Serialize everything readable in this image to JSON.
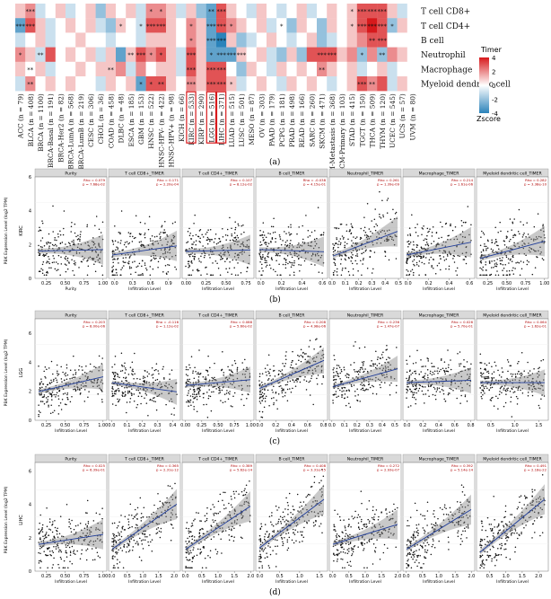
{
  "panel_labels": [
    "(a)",
    "(b)",
    "(c)",
    "(d)"
  ],
  "chart_data": [
    {
      "type": "heatmap",
      "title": "",
      "rows": [
        "T cell CD8+",
        "T cell CD4+",
        "B cell",
        "Neutrophil",
        "Macrophage",
        "Myeloid dendritic cell"
      ],
      "columns": [
        "ACC (n = 79)",
        "BLCA (n = 408)",
        "BRCA (n = 1100)",
        "BRCA-Basal (n = 191)",
        "BRCA-Her2 (n = 82)",
        "BRCA-LumA (n = 568)",
        "BRCA-LumB (n = 219)",
        "CESC (n = 306)",
        "CHOL (n = 36)",
        "COAD (n = 458)",
        "DLBC (n = 48)",
        "ESCA (n = 185)",
        "GBM (n = 153)",
        "HNSC (n = 522)",
        "HNSC-HPV- (n = 422)",
        "HNSC-HPV+ (n = 98)",
        "KICH (n = 66)",
        "KIRC (n = 533)",
        "KIRP (n = 290)",
        "LGG (n = 516)",
        "LIHC (n = 371)",
        "LUAD (n = 515)",
        "LUSC (n = 501)",
        "MESO (n = 87)",
        "OV (n = 303)",
        "PAAD (n = 179)",
        "PCPG (n = 181)",
        "PRAD (n = 498)",
        "READ (n = 166)",
        "SARC (n = 260)",
        "SKCM (n = 471)",
        "SKCM-Metastasis (n = 368)",
        "SKCM-Primary (n = 103)",
        "STAD (n = 415)",
        "TGCT (n = 150)",
        "THCA (n = 509)",
        "THYM (n = 120)",
        "UCEC (n = 545)",
        "UCS (n = 57)",
        "UVM (n = 80)"
      ],
      "highlighted_columns": [
        "KIRC (n = 533)",
        "LGG (n = 516)",
        "LIHC (n = 371)"
      ],
      "values": [
        [
          1,
          2,
          -1,
          0,
          1,
          -1,
          0,
          1,
          -2,
          1,
          0,
          1,
          -1,
          2,
          2,
          1,
          -1,
          1,
          -2,
          -3,
          3,
          1,
          0,
          -1,
          1,
          0,
          -1,
          0,
          1,
          -1,
          0,
          1,
          0,
          1,
          3,
          3,
          3,
          1,
          -1,
          0
        ],
        [
          -3,
          3,
          1,
          -1,
          0,
          1,
          0,
          1,
          -1,
          -2,
          1,
          0,
          -1,
          3,
          3,
          1,
          0,
          2,
          1,
          -3,
          3,
          2,
          1,
          0,
          1,
          -1,
          0,
          -2,
          1,
          0,
          -2,
          1,
          0,
          1,
          3,
          4,
          3,
          -2,
          1,
          0
        ],
        [
          -1,
          0,
          1,
          -1,
          0,
          0,
          1,
          0,
          0,
          -1,
          0,
          0,
          -1,
          1,
          1,
          1,
          0,
          2,
          1,
          -3,
          -4,
          1,
          -2,
          -1,
          0,
          1,
          0,
          -1,
          0,
          1,
          -2,
          -1,
          0,
          1,
          2,
          3,
          3,
          0,
          0,
          0
        ],
        [
          2,
          1,
          -1,
          3,
          0,
          1,
          0,
          1,
          -1,
          1,
          -3,
          1,
          3,
          2,
          3,
          1,
          -1,
          3,
          1,
          -3,
          -3,
          -3,
          1,
          0,
          1,
          -1,
          -2,
          1,
          -2,
          3,
          3,
          3,
          1,
          2,
          -2,
          2,
          -2,
          2,
          1,
          0
        ],
        [
          1,
          0,
          1,
          -1,
          0,
          0,
          1,
          0,
          1,
          1,
          2,
          -1,
          2,
          0,
          1,
          1,
          -1,
          3,
          1,
          3,
          3,
          0,
          -2,
          1,
          0,
          -1,
          1,
          0,
          1,
          0,
          2,
          1,
          0,
          1,
          -1,
          0,
          1,
          -1,
          0,
          0
        ],
        [
          -1,
          2,
          0,
          1,
          0,
          1,
          0,
          0,
          -1,
          1,
          0,
          1,
          -3,
          3,
          3,
          1,
          0,
          2,
          1,
          3,
          3,
          1,
          -1,
          0,
          1,
          0,
          -1,
          1,
          0,
          1,
          0,
          -1,
          0,
          1,
          3,
          2,
          3,
          -1,
          1,
          0
        ]
      ],
      "stars": [
        [
          "",
          "***",
          "",
          "",
          "",
          "",
          "",
          "",
          "",
          "",
          "",
          "",
          "",
          "*",
          "*",
          "",
          "",
          "",
          "",
          "**",
          "***",
          "",
          "",
          "",
          "",
          "",
          "",
          "",
          "",
          "",
          "",
          "",
          "",
          "*",
          "***",
          "***",
          "***",
          "",
          "",
          ""
        ],
        [
          "***",
          "***",
          "",
          "",
          "",
          "",
          "",
          "",
          "",
          "",
          "*",
          "",
          "*",
          "***",
          "***",
          "",
          "",
          "*",
          "",
          "***",
          "***",
          "*",
          "",
          "",
          "",
          "",
          "*",
          "",
          "",
          "",
          "",
          "",
          "",
          "*",
          "***",
          "***",
          "***",
          "*",
          "",
          ""
        ],
        [
          "",
          "",
          "",
          "",
          "",
          "",
          "",
          "",
          "",
          "",
          "",
          "",
          "",
          "",
          "",
          "",
          "",
          "*",
          "",
          "***",
          "***",
          "",
          "",
          "",
          "",
          "",
          "",
          "",
          "",
          "",
          "",
          "",
          "",
          "",
          "",
          "**",
          "***",
          "",
          "",
          ""
        ],
        [
          "*",
          "",
          "**",
          "",
          "",
          "",
          "",
          "",
          "",
          "",
          "",
          "**",
          "***",
          "*",
          "*",
          "",
          "",
          "***",
          "",
          "*",
          "***",
          "***",
          "***",
          "",
          "",
          "",
          "",
          "",
          "",
          "",
          "***",
          "***",
          "",
          "",
          "*",
          "",
          "**",
          "",
          "",
          ""
        ],
        [
          "",
          "**",
          "",
          "",
          "",
          "",
          "",
          "",
          "",
          "**",
          "",
          "",
          "",
          "",
          "",
          "",
          "",
          "***",
          "",
          "***",
          "***",
          "",
          "",
          "",
          "",
          "",
          "",
          "",
          "",
          "",
          "**",
          "",
          "",
          "",
          "",
          "",
          "",
          "",
          "",
          ""
        ],
        [
          "",
          "**",
          "",
          "",
          "",
          "",
          "",
          "",
          "",
          "",
          "",
          "",
          "*",
          "*",
          "**",
          "",
          "",
          "***",
          "",
          "***",
          "***",
          "*",
          "",
          "",
          "",
          "",
          "",
          "",
          "",
          "",
          "",
          "",
          "",
          "",
          "***",
          "**",
          "",
          "",
          "",
          ""
        ]
      ],
      "color_scale": {
        "min": -4,
        "max": 4,
        "ticks": [
          4,
          2,
          0,
          -2,
          -4
        ],
        "low": "#2b83ba",
        "mid": "#ffffff",
        "high": "#d7191c"
      },
      "legend_title_top": "Timer",
      "legend_title_bottom": "Zscore"
    },
    {
      "type": "scatter",
      "row_label": "KIRC",
      "ylabel": "PBK Expression Level (log2 TPM)",
      "xlabel": "Infiltration Level",
      "ylim": [
        0,
        6
      ],
      "facets": [
        {
          "title": "Purity",
          "xlabel": "Purity",
          "xticks": [
            "0.25",
            "0.50",
            "0.75",
            "1.00"
          ],
          "xlim": [
            0.1,
            1.05
          ],
          "slope": 0.1,
          "intercept": 1.6,
          "stat": [
            "Rho = 0.079",
            "p = 7.68e-02"
          ]
        },
        {
          "title": "T cell CD8+_TIMER",
          "xticks": [
            "0.0",
            "0.3",
            "0.6",
            "0.9"
          ],
          "xlim": [
            -0.1,
            1.1
          ],
          "slope": 0.5,
          "intercept": 1.4,
          "stat": [
            "Rho = 0.171",
            "p = 2.20e-04"
          ]
        },
        {
          "title": "T cell CD4+_TIMER",
          "xticks": [
            "0.00",
            "0.25",
            "0.50",
            "0.75"
          ],
          "xlim": [
            -0.05,
            0.85
          ],
          "slope": 0.1,
          "intercept": 1.6,
          "stat": [
            "Rho = 0.107",
            "p = 8.12e-02"
          ]
        },
        {
          "title": "B cell_TIMER",
          "xticks": [
            "0.0",
            "0.2",
            "0.4",
            "0.6"
          ],
          "xlim": [
            -0.05,
            0.65
          ],
          "slope": -0.2,
          "intercept": 1.7,
          "stat": [
            "Rho = -0.038",
            "p = 4.15e-01"
          ]
        },
        {
          "title": "Neutrophil_TIMER",
          "xticks": [
            "0.0",
            "0.1",
            "0.2",
            "0.3",
            "0.4",
            "0.5"
          ],
          "xlim": [
            -0.02,
            0.52
          ],
          "slope": 3.0,
          "intercept": 1.3,
          "stat": [
            "Rho = 0.261",
            "p = 1.39e-09"
          ]
        },
        {
          "title": "Macrophage_TIMER",
          "xticks": [
            "0.0",
            "0.2",
            "0.4",
            "0.6"
          ],
          "xlim": [
            -0.05,
            0.65
          ],
          "slope": 1.2,
          "intercept": 1.4,
          "stat": [
            "Rho = 0.214",
            "p = 1.61e-06"
          ]
        },
        {
          "title": "Myeloid dendritic cell_TIMER",
          "xticks": [
            "0.25",
            "0.50",
            "0.75",
            "1.00"
          ],
          "xlim": [
            0.1,
            1.05
          ],
          "slope": 1.2,
          "intercept": 1.0,
          "stat": [
            "Rho = 0.282",
            "p = 3.38e-10"
          ]
        }
      ]
    },
    {
      "type": "scatter",
      "row_label": "LGG",
      "ylabel": "PBK Expression Level (log2 TPM)",
      "xlabel": "Infiltration Level",
      "ylim": [
        0,
        7
      ],
      "facets": [
        {
          "title": "Purity",
          "xticks": [
            "0.25",
            "0.50",
            "0.75",
            "1.00"
          ],
          "xlim": [
            0.1,
            1.05
          ],
          "slope": 1.2,
          "intercept": 1.8,
          "stat": [
            "Rho = 0.203",
            "p = 8.00e-06"
          ]
        },
        {
          "title": "T cell CD8+_TIMER",
          "xticks": [
            "0.0",
            "0.1",
            "0.2",
            "0.3",
            "0.4"
          ],
          "xlim": [
            -0.02,
            0.45
          ],
          "slope": -1.5,
          "intercept": 2.6,
          "stat": [
            "Rho = -0.116",
            "p = 1.12e-02"
          ]
        },
        {
          "title": "T cell CD4+_TIMER",
          "xticks": [
            "0.00",
            "0.25",
            "0.50",
            "0.75",
            "1.00"
          ],
          "xlim": [
            -0.05,
            1.05
          ],
          "slope": 0.4,
          "intercept": 2.4,
          "stat": [
            "Rho = 0.088",
            "p = 5.60e-02"
          ]
        },
        {
          "title": "B cell_TIMER",
          "xticks": [
            "0.0",
            "0.2",
            "0.4",
            "0.6",
            "0.8"
          ],
          "xlim": [
            -0.05,
            0.85
          ],
          "slope": 2.4,
          "intercept": 2.2,
          "stat": [
            "Rho = 0.208",
            "p = 4.98e-06"
          ]
        },
        {
          "title": "Neutrophil_TIMER",
          "xticks": [
            "0.0",
            "0.1",
            "0.2",
            "0.3",
            "0.4",
            "0.5"
          ],
          "xlim": [
            -0.02,
            0.55
          ],
          "slope": 2.4,
          "intercept": 2.3,
          "stat": [
            "Rho = 0.236",
            "p = 1.47e-07"
          ]
        },
        {
          "title": "Macrophage_TIMER",
          "xticks": [
            "0.0",
            "0.2",
            "0.4",
            "0.6",
            "0.8"
          ],
          "xlim": [
            -0.05,
            0.85
          ],
          "slope": 0.2,
          "intercept": 2.6,
          "stat": [
            "Rho = 0.026",
            "p = 5.70e-01"
          ]
        },
        {
          "title": "Myeloid dendritic cell_TIMER",
          "xticks": [
            "0.5",
            "1.0",
            "1.5"
          ],
          "xlim": [
            0.2,
            1.7
          ],
          "slope": 0.0,
          "intercept": 2.6,
          "stat": [
            "Rho = 0.064",
            "p = 1.62e-01"
          ]
        }
      ]
    },
    {
      "type": "scatter",
      "row_label": "LIHC",
      "ylabel": "PBK Expression Level (log2 TPM)",
      "xlabel": "Infiltration Level",
      "ylim": [
        0,
        6.5
      ],
      "facets": [
        {
          "title": "Purity",
          "xticks": [
            "0.25",
            "0.50",
            "0.75",
            "1.00"
          ],
          "xlim": [
            0.1,
            1.05
          ],
          "slope": 0.7,
          "intercept": 1.5,
          "stat": [
            "Rho = 0.025",
            "p = 6.39e-01"
          ]
        },
        {
          "title": "T cell CD8+_TIMER",
          "xticks": [
            "0.0",
            "0.5",
            "1.0",
            "1.5",
            "2.0"
          ],
          "xlim": [
            -0.1,
            2.2
          ],
          "slope": 1.3,
          "intercept": 1.3,
          "stat": [
            "Rho = 0.365",
            "p = 2.31e-12"
          ]
        },
        {
          "title": "T cell CD4+_TIMER",
          "xticks": [
            "0.0",
            "0.5",
            "1.0",
            "1.5",
            "2.0"
          ],
          "xlim": [
            -0.1,
            2.1
          ],
          "slope": 1.3,
          "intercept": 1.3,
          "stat": [
            "Rho = 0.389",
            "p = 5.62e-14"
          ]
        },
        {
          "title": "B cell_TIMER",
          "xticks": [
            "0.0",
            "0.5",
            "1.0",
            "1.5"
          ],
          "xlim": [
            -0.1,
            1.7
          ],
          "slope": 1.8,
          "intercept": 1.4,
          "stat": [
            "Rho = 0.408",
            "p = 3.31e-15"
          ]
        },
        {
          "title": "Neutrophil_TIMER",
          "xticks": [
            "0.0",
            "0.5",
            "1.0",
            "1.5",
            "2.0"
          ],
          "xlim": [
            -0.1,
            2.1
          ],
          "slope": 0.6,
          "intercept": 1.6,
          "stat": [
            "Rho = 0.272",
            "p = 2.93e-07"
          ]
        },
        {
          "title": "Macrophage_TIMER",
          "xticks": [
            "0.0",
            "0.5",
            "1.0",
            "1.5",
            "2.0"
          ],
          "xlim": [
            -0.1,
            2.1
          ],
          "slope": 1.2,
          "intercept": 1.3,
          "stat": [
            "Rho = 0.392",
            "p = 5.14e-14"
          ]
        },
        {
          "title": "Myeloid dendritic cell_TIMER",
          "xticks": [
            "0.5",
            "1.0",
            "1.5",
            "2.0"
          ],
          "xlim": [
            0.1,
            2.3
          ],
          "slope": 1.6,
          "intercept": 0.8,
          "stat": [
            "Rho = 0.491",
            "p = 2.18e-22"
          ]
        }
      ]
    }
  ]
}
